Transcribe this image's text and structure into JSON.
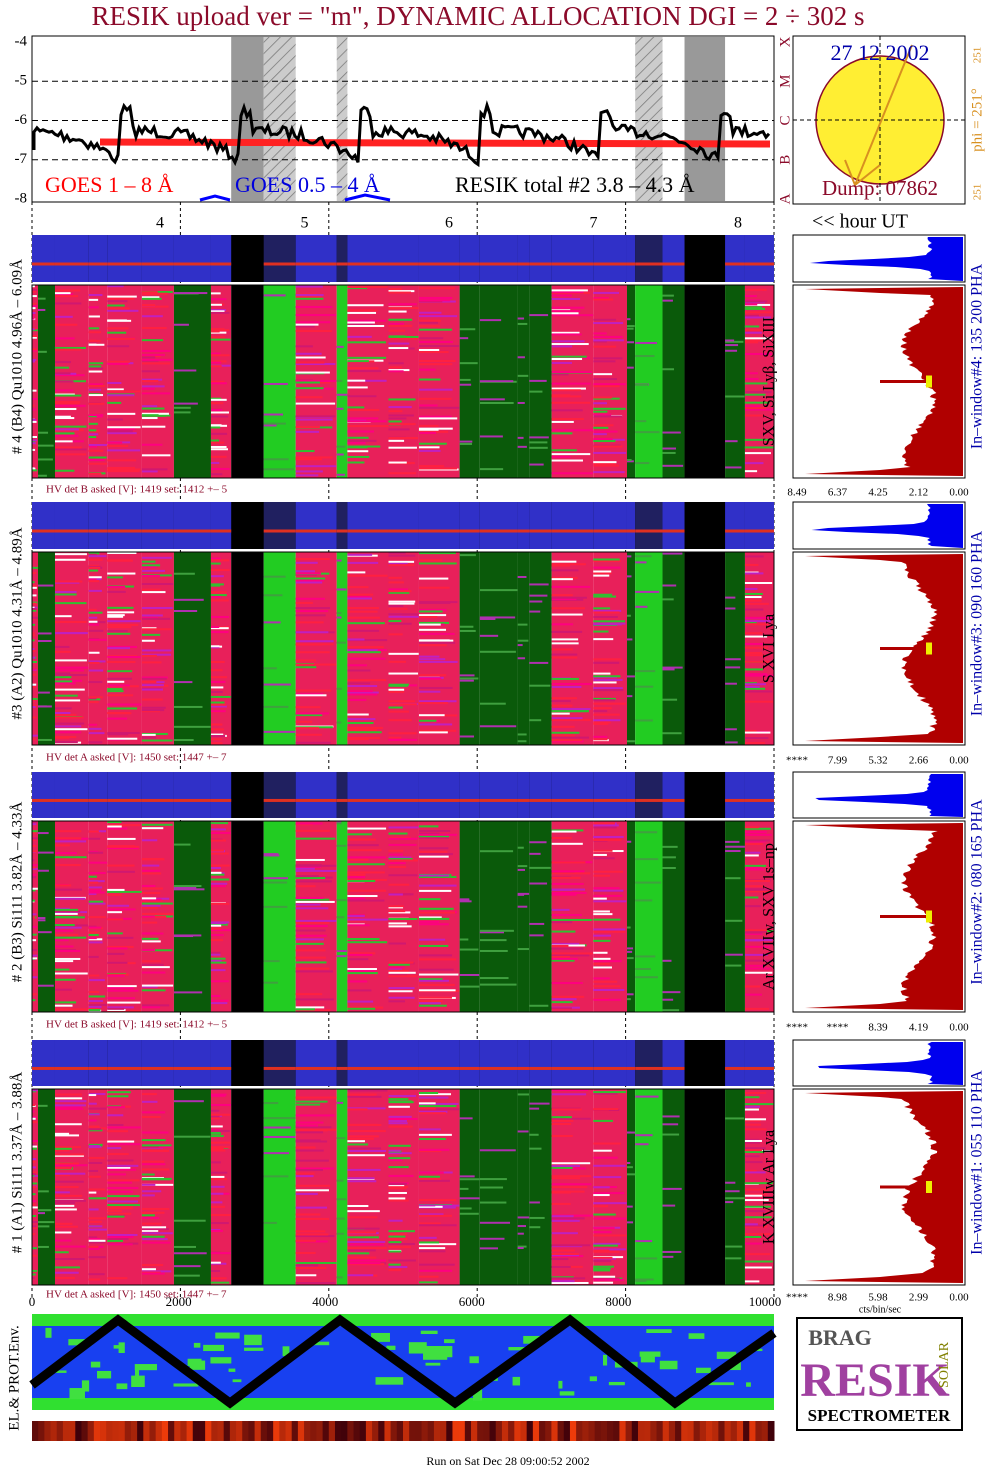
{
  "title": "RESIK upload ver = \"m\", DYNAMIC ALLOCATION  DGI =   2 ÷ 302 s",
  "goes_panel": {
    "yticks": [
      "-4",
      "-5",
      "-6",
      "-7",
      "-8"
    ],
    "classes": [
      "X",
      "M",
      "C",
      "B",
      "A"
    ],
    "legend": [
      "GOES 1 – 8 Å",
      "GOES 0.5 – 4 Å",
      "RESIK total #2 3.8 – 4.3 Å"
    ]
  },
  "sun": {
    "date": "27 12 2002",
    "dump": "Dump: 07862",
    "phi": "phi = 251°",
    "phi_top": "251",
    "phi_bottom": "251"
  },
  "hours": {
    "ticks": [
      "4",
      "5",
      "6",
      "7",
      "8"
    ],
    "label": "<< hour UT"
  },
  "channels": [
    {
      "label": "# 4 (B4) Qu1010 4.96Å – 6.09Å",
      "lines": "SXV, Si Lyβ, SiXIII",
      "window": "In–window#4:  135 200 PHA",
      "hv": "HV det B asked [V]:  1419 set:  1412 +–   5",
      "hist_ticks": [
        "8.49",
        "6.37",
        "4.25",
        "2.12",
        "0.00"
      ]
    },
    {
      "label": "#3 (A2) Qu1010  4.31Å – 4.89Å",
      "lines": "S XVI Lya",
      "window": "In–window#3:  090 160 PHA",
      "hv": "HV det A asked [V]:  1450 set:  1447 +–   7",
      "hist_ticks": [
        "****",
        "7.99",
        "5.32",
        "2.66",
        "0.00"
      ]
    },
    {
      "label": "# 2 (B3) Si111  3.82Å – 4.33Å",
      "lines": "Ar XVIIw,  SXV 1s–np",
      "window": "In–window#2:  080 165 PHA",
      "hv": "HV det B asked [V]:  1419 set:  1412 +–   5",
      "hist_ticks": [
        "****",
        "****",
        "8.39",
        "4.19",
        "0.00"
      ]
    },
    {
      "label": "# 1 (A1) Si111  3.37Å – 3.88Å",
      "lines": "K XVIIIw  Ar Lya",
      "window": "In–window#1:  055 110 PHA",
      "hv": "HV det A asked [V]:  1450 set:  1447 +–   7",
      "hist_ticks": [
        "****",
        "8.98",
        "5.98",
        "2.99",
        "0.00"
      ]
    }
  ],
  "x_axis": {
    "ticks": [
      "0",
      "2000",
      "4000",
      "6000",
      "8000",
      "10000"
    ],
    "unit": "cts/bin/sec"
  },
  "environment": {
    "label": "EL.& PROT.Env."
  },
  "logo": {
    "top": "BRAG",
    "main": "RESIK",
    "side": "SOLAR",
    "bottom": "SPECTROMETER"
  },
  "footer": "Run on Sat Dec 28 09:00:52 2002"
}
